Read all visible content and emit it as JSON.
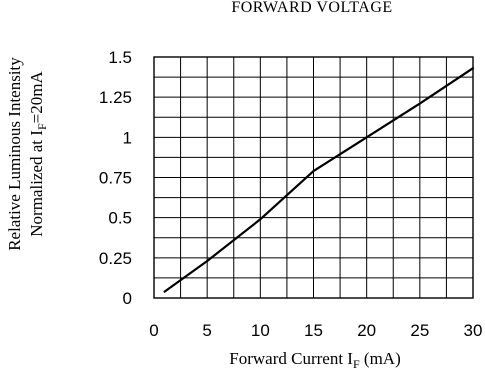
{
  "chart_data": {
    "type": "line",
    "title": "FORWARD VOLTAGE",
    "xlabel": {
      "main": "Forward Current I",
      "sub": "F",
      "suffix": " (mA)"
    },
    "ylabel": {
      "line1": "Relative Luminous Intensity",
      "line2_main": "Normalized at I",
      "line2_sub": "F",
      "line2_suffix": "=20mA"
    },
    "xlim": [
      0,
      30
    ],
    "ylim": [
      0,
      1.5
    ],
    "x_ticks": [
      "0",
      "5",
      "10",
      "15",
      "20",
      "25",
      "30"
    ],
    "y_ticks": [
      "0",
      "0.25",
      "0.5",
      "0.75",
      "1",
      "1.25",
      "1.5"
    ],
    "x_grid_step": 2.5,
    "y_grid_step": 0.125,
    "grid": true,
    "series": [
      {
        "x": [
          1,
          5,
          10,
          15,
          20,
          25,
          30
        ],
        "y": [
          0.04,
          0.23,
          0.49,
          0.79,
          1.0,
          1.21,
          1.43
        ]
      }
    ],
    "colors": {
      "line": "#000000",
      "grid": "#000000",
      "background": "#ffffff"
    }
  }
}
